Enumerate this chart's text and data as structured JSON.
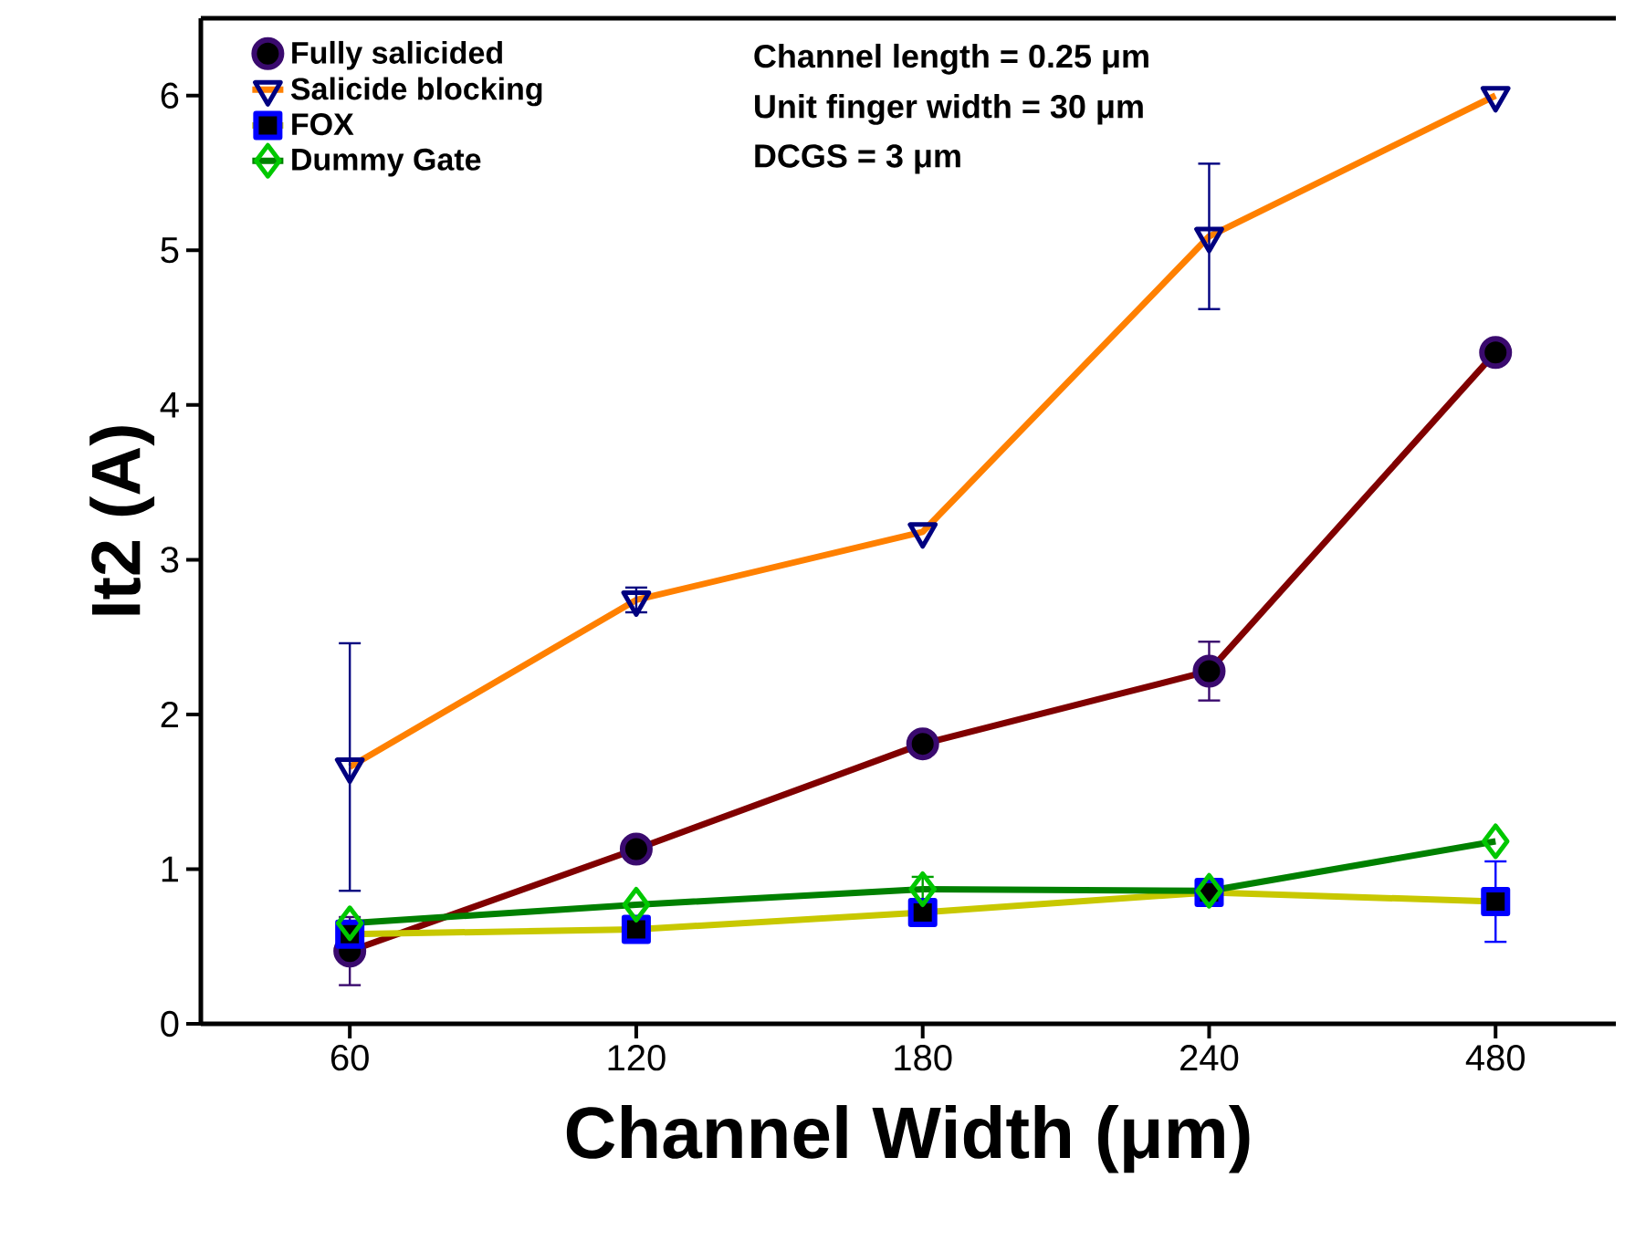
{
  "chart_data": {
    "type": "line",
    "xlabel": "Channel Width (μm)",
    "ylabel": "It2 (A)",
    "categories": [
      "60",
      "120",
      "180",
      "240",
      "480"
    ],
    "ylim": [
      0,
      6.5
    ],
    "yticks": [
      0,
      1,
      2,
      3,
      4,
      5,
      6
    ],
    "legend": "top left",
    "annotations": [
      "Channel length = 0.25 μm",
      "Unit finger width = 30 μm",
      "DCGS = 3 μm"
    ],
    "series": [
      {
        "name": "Fully salicided",
        "color": "#800000",
        "marker": "circle",
        "values": [
          0.47,
          1.13,
          1.81,
          2.28,
          4.34
        ],
        "errors": [
          0.22,
          null,
          null,
          0.19,
          null
        ]
      },
      {
        "name": "Salicide blocking",
        "color": "#ff8000",
        "marker": "triangle",
        "values": [
          1.66,
          2.74,
          3.18,
          5.09,
          6.0
        ],
        "errors": [
          0.8,
          0.08,
          null,
          0.47,
          null
        ]
      },
      {
        "name": "FOX",
        "color": "#c8c800",
        "marker": "square",
        "values": [
          0.58,
          0.61,
          0.72,
          0.85,
          0.79
        ],
        "errors": [
          null,
          null,
          null,
          null,
          0.26
        ]
      },
      {
        "name": "Dummy Gate",
        "color": "#008000",
        "marker": "diamond",
        "values": [
          0.65,
          0.77,
          0.87,
          0.86,
          1.18
        ],
        "errors": [
          null,
          null,
          0.08,
          null,
          null
        ]
      }
    ]
  }
}
